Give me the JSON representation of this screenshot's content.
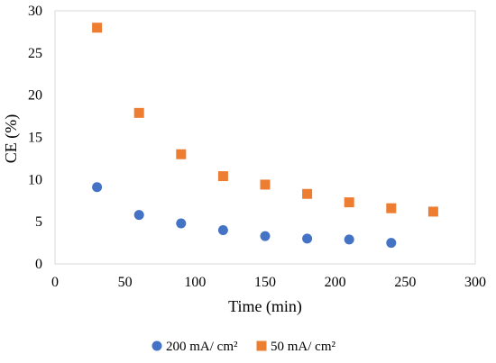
{
  "chart_data": {
    "type": "scatter",
    "title": "",
    "xlabel": "Time (min)",
    "ylabel": "CE (%)",
    "xlim": [
      0,
      300
    ],
    "ylim": [
      0,
      30
    ],
    "xticks": [
      0,
      50,
      100,
      150,
      200,
      250,
      300
    ],
    "yticks": [
      0,
      5,
      10,
      15,
      20,
      25,
      30
    ],
    "grid": false,
    "legend": "bottom",
    "series": [
      {
        "name": "200 mA/ cm²",
        "marker": "circle",
        "color": "#4472C4",
        "points": [
          [
            30,
            9.1
          ],
          [
            60,
            5.8
          ],
          [
            90,
            4.8
          ],
          [
            120,
            4.0
          ],
          [
            150,
            3.3
          ],
          [
            180,
            3.0
          ],
          [
            210,
            2.9
          ],
          [
            240,
            2.5
          ]
        ]
      },
      {
        "name": "50 mA/ cm²",
        "marker": "square",
        "color": "#ED7D31",
        "points": [
          [
            30,
            28.0
          ],
          [
            60,
            17.9
          ],
          [
            90,
            13.0
          ],
          [
            120,
            10.4
          ],
          [
            150,
            9.4
          ],
          [
            180,
            8.3
          ],
          [
            210,
            7.3
          ],
          [
            240,
            6.6
          ],
          [
            270,
            6.2
          ]
        ]
      }
    ]
  }
}
